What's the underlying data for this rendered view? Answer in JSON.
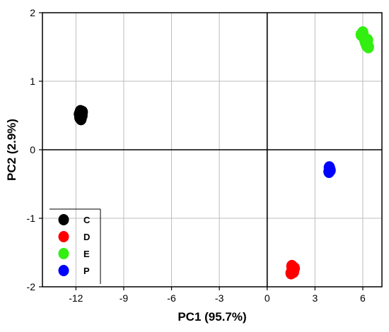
{
  "chart_data": {
    "type": "scatter",
    "xlabel": "PC1 (95.7%)",
    "ylabel": "PC2 (2.9%)",
    "xlim": [
      -14.1,
      7.2
    ],
    "ylim": [
      -2,
      2
    ],
    "x_ticks": [
      -12,
      -9,
      -6,
      -3,
      0,
      3,
      6
    ],
    "x_tick_labels": [
      "-12",
      "-9",
      "-6",
      "-3",
      "0",
      "3",
      "6"
    ],
    "y_ticks": [
      -2,
      -1,
      0,
      1,
      2
    ],
    "y_tick_labels": [
      "-2",
      "-1",
      "0",
      "1",
      "2"
    ],
    "grid": true,
    "zero_lines": true,
    "legend_position": "bottom-left",
    "series": [
      {
        "name": "C",
        "color": "#000000",
        "x": [
          -11.75,
          -11.7,
          -11.65,
          -11.72,
          -11.68,
          -11.62,
          -11.78,
          -11.6
        ],
        "y": [
          0.47,
          0.5,
          0.53,
          0.56,
          0.45,
          0.5,
          0.52,
          0.55
        ]
      },
      {
        "name": "D",
        "color": "#ff0000",
        "x": [
          1.5,
          1.6,
          1.7,
          1.55,
          1.65,
          1.58
        ],
        "y": [
          -1.8,
          -1.76,
          -1.73,
          -1.7,
          -1.78,
          -1.72
        ]
      },
      {
        "name": "E",
        "color": "#33ee11",
        "x": [
          5.9,
          6.0,
          6.05,
          6.1,
          6.15,
          6.2,
          6.25,
          6.3,
          6.35
        ],
        "y": [
          1.68,
          1.71,
          1.65,
          1.62,
          1.58,
          1.55,
          1.52,
          1.6,
          1.5
        ]
      },
      {
        "name": "P",
        "color": "#0000ff",
        "x": [
          3.88,
          3.92,
          3.95,
          3.9
        ],
        "y": [
          -0.32,
          -0.28,
          -0.3,
          -0.26
        ]
      }
    ]
  }
}
